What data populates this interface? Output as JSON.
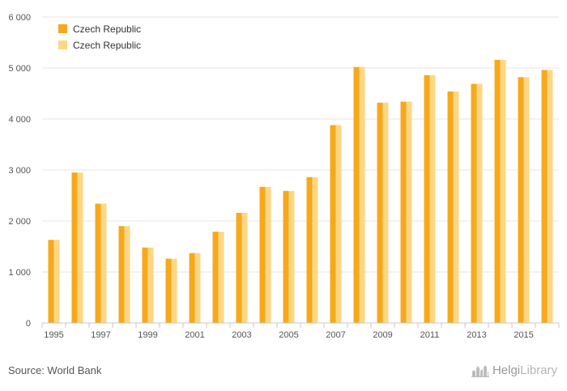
{
  "chart_data": {
    "type": "bar",
    "categories": [
      "1995",
      "1996",
      "1997",
      "1998",
      "1999",
      "2000",
      "2001",
      "2002",
      "2003",
      "2004",
      "2005",
      "2006",
      "2007",
      "2008",
      "2009",
      "2010",
      "2011",
      "2012",
      "2013",
      "2014",
      "2015",
      "2016"
    ],
    "x_tick_labels": [
      "1995",
      "1997",
      "1999",
      "2001",
      "2003",
      "2005",
      "2007",
      "2009",
      "2011",
      "2013",
      "2015"
    ],
    "series": [
      {
        "name": "Czech Republic",
        "color": "#f7a81b",
        "values": [
          1630,
          2950,
          2340,
          1900,
          1480,
          1260,
          1370,
          1790,
          2160,
          2670,
          2590,
          2860,
          3880,
          5020,
          4320,
          4340,
          4860,
          4540,
          4690,
          5160,
          4820,
          4960
        ]
      },
      {
        "name": "Czech Republic",
        "color": "#fdd784",
        "values": [
          1630,
          2950,
          2340,
          1900,
          1480,
          1260,
          1370,
          1790,
          2160,
          2670,
          2590,
          2860,
          3880,
          5020,
          4320,
          4340,
          4860,
          4540,
          4690,
          5160,
          4820,
          4960
        ]
      }
    ],
    "ylim": [
      0,
      6000
    ],
    "y_ticks": [
      0,
      1000,
      2000,
      3000,
      4000,
      5000,
      6000
    ],
    "y_tick_labels": [
      "0",
      "1 000",
      "2 000",
      "3 000",
      "4 000",
      "5 000",
      "6 000"
    ],
    "grid": true,
    "legend_position": "top-left",
    "xlabel": "",
    "ylabel": ""
  },
  "footer": {
    "source": "Source: World Bank",
    "brand_prefix": "Helgi",
    "brand_suffix": "Library",
    "brand_icon": "town-skyline-icon"
  }
}
